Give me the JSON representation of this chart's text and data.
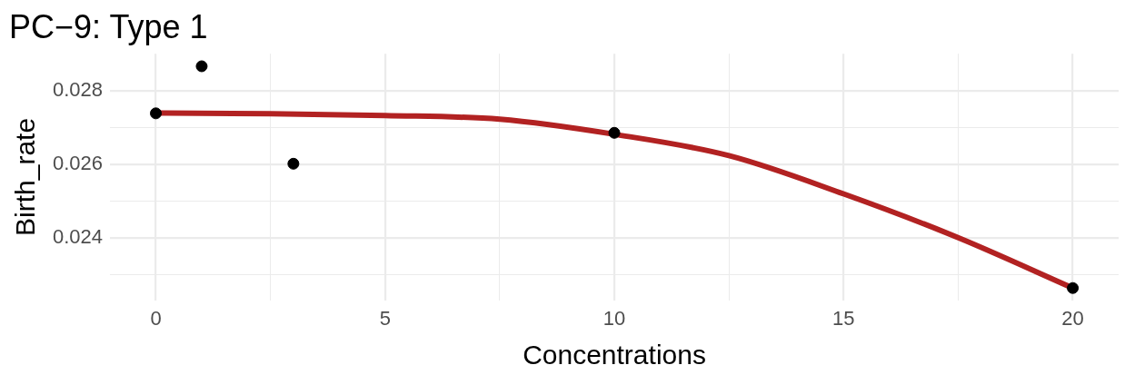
{
  "chart_data": {
    "type": "scatter",
    "title": "PC−9: Type 1",
    "xlabel": "Concentrations",
    "ylabel": "Birth_rate",
    "series": [
      {
        "type": "scatter",
        "marker": "circle",
        "color": "#000000",
        "x": [
          0,
          1,
          3,
          10,
          20
        ],
        "values": [
          0.02738,
          0.02866,
          0.02601,
          0.02685,
          0.02263
        ]
      },
      {
        "type": "line",
        "marker": "none",
        "color": "#b22222",
        "x": [
          0,
          2.5,
          5,
          7.5,
          10,
          12.5,
          15,
          17.5,
          20
        ],
        "values": [
          0.02739,
          0.02737,
          0.02732,
          0.02722,
          0.02681,
          0.02623,
          0.02519,
          0.024,
          0.02263
        ]
      }
    ],
    "xlim": [
      -1,
      21
    ],
    "xticks": [
      0,
      {
        "value": 2.5,
        "label": null
      },
      5,
      {
        "value": 7.5,
        "label": null
      },
      10,
      {
        "value": 12.5,
        "label": null
      },
      15,
      {
        "value": 17.5,
        "label": null
      },
      20
    ],
    "ylim": [
      0.0223,
      0.029
    ],
    "yticks": [
      {
        "value": 0.023,
        "label": null
      },
      0.024,
      {
        "value": 0.025,
        "label": null
      },
      0.026,
      {
        "value": 0.027,
        "label": null
      },
      0.028
    ],
    "grid": true,
    "legend": false
  }
}
